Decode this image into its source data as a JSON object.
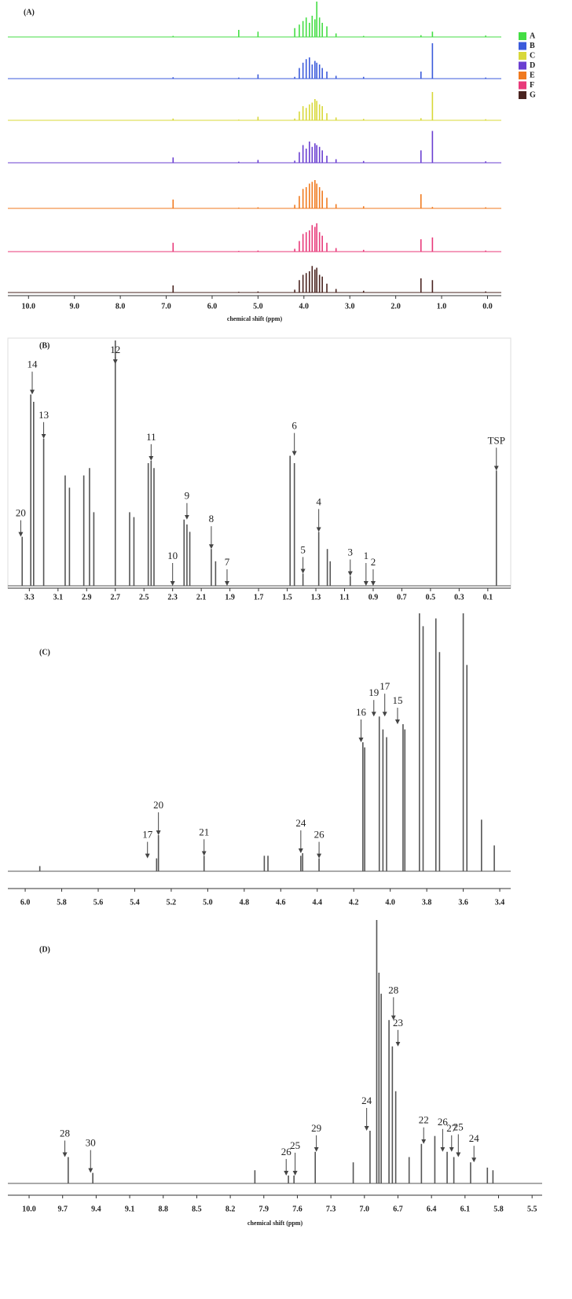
{
  "chart_data": [
    {
      "type": "spectrum",
      "title": "(A)",
      "xlabel": "chemical shift (ppm)",
      "xlim": [
        10.45,
        -0.3
      ],
      "xticks": [
        {
          "value": 10,
          "label": "10.0"
        },
        {
          "value": 9,
          "label": "9.0"
        },
        {
          "value": 8,
          "label": "8.0"
        },
        {
          "value": 7,
          "label": "7.0"
        },
        {
          "value": 6,
          "label": "6.0"
        },
        {
          "value": 5,
          "label": "5.0"
        },
        {
          "value": 4,
          "label": "4.0"
        },
        {
          "value": 3,
          "label": "3.0"
        },
        {
          "value": 2,
          "label": "2.0"
        },
        {
          "value": 1,
          "label": "1.0"
        },
        {
          "value": 0,
          "label": "0.0"
        }
      ],
      "x": [
        6.85,
        5.42,
        5.0,
        4.2,
        4.1,
        4.02,
        3.95,
        3.88,
        3.82,
        3.76,
        3.72,
        3.66,
        3.6,
        3.5,
        3.3,
        2.7,
        1.45,
        1.2,
        0.04
      ],
      "series": [
        {
          "name": "A",
          "color": "#44dd44",
          "values": [
            3,
            20,
            15,
            25,
            35,
            45,
            55,
            40,
            60,
            50,
            100,
            55,
            40,
            30,
            10,
            3,
            5,
            15,
            4
          ]
        },
        {
          "name": "B",
          "color": "#3b5bdb",
          "values": [
            4,
            3,
            12,
            5,
            30,
            45,
            55,
            60,
            40,
            50,
            45,
            40,
            30,
            20,
            8,
            5,
            20,
            100,
            3
          ]
        },
        {
          "name": "C",
          "color": "#d8d83a",
          "values": [
            5,
            2,
            10,
            5,
            25,
            40,
            35,
            45,
            50,
            60,
            55,
            45,
            40,
            20,
            8,
            4,
            6,
            80,
            3
          ]
        },
        {
          "name": "D",
          "color": "#6a3fd1",
          "values": [
            15,
            3,
            8,
            6,
            30,
            50,
            40,
            60,
            45,
            55,
            50,
            45,
            35,
            20,
            10,
            5,
            35,
            90,
            4
          ]
        },
        {
          "name": "E",
          "color": "#f07a1f",
          "values": [
            25,
            2,
            3,
            10,
            35,
            55,
            60,
            70,
            75,
            80,
            70,
            60,
            50,
            30,
            12,
            6,
            40,
            4,
            3
          ]
        },
        {
          "name": "F",
          "color": "#e83a7a",
          "values": [
            25,
            2,
            3,
            8,
            30,
            50,
            55,
            60,
            75,
            70,
            80,
            55,
            45,
            25,
            10,
            5,
            35,
            40,
            3
          ]
        },
        {
          "name": "G",
          "color": "#4a2420",
          "values": [
            20,
            2,
            3,
            8,
            35,
            50,
            55,
            60,
            75,
            65,
            70,
            50,
            45,
            25,
            10,
            5,
            40,
            35,
            3
          ]
        }
      ]
    },
    {
      "type": "spectrum",
      "title": "(B)",
      "xlim": [
        3.45,
        -0.06
      ],
      "xticks": [
        3.3,
        3.1,
        2.9,
        2.7,
        2.5,
        2.3,
        2.1,
        1.9,
        1.7,
        1.5,
        1.3,
        1.1,
        0.9,
        0.7,
        0.5,
        0.3,
        0.1
      ],
      "x": [
        3.35,
        3.29,
        3.27,
        3.2,
        3.05,
        3.02,
        2.92,
        2.88,
        2.85,
        2.7,
        2.6,
        2.57,
        2.47,
        2.45,
        2.43,
        2.22,
        2.2,
        2.18,
        2.03,
        2.0,
        1.48,
        1.45,
        1.39,
        1.28,
        1.22,
        1.2,
        1.06,
        0.04
      ],
      "series": [
        {
          "color": "#555555",
          "values": [
            20,
            78,
            75,
            60,
            45,
            40,
            45,
            48,
            30,
            100,
            30,
            28,
            50,
            51,
            48,
            27,
            25,
            22,
            15,
            10,
            53,
            50,
            5,
            22,
            15,
            10,
            4,
            47
          ]
        }
      ],
      "annotations": [
        {
          "text": "20",
          "x": 3.36
        },
        {
          "text": "14",
          "x": 3.28
        },
        {
          "text": "13",
          "x": 3.2
        },
        {
          "text": "12",
          "x": 2.7
        },
        {
          "text": "11",
          "x": 2.45
        },
        {
          "text": "10",
          "x": 2.3
        },
        {
          "text": "9",
          "x": 2.2
        },
        {
          "text": "8",
          "x": 2.03
        },
        {
          "text": "7",
          "x": 1.92
        },
        {
          "text": "6",
          "x": 1.45
        },
        {
          "text": "5",
          "x": 1.39
        },
        {
          "text": "4",
          "x": 1.28
        },
        {
          "text": "3",
          "x": 1.06
        },
        {
          "text": "1",
          "x": 0.95
        },
        {
          "text": "2",
          "x": 0.9
        },
        {
          "text": "TSP",
          "x": 0.04
        }
      ]
    },
    {
      "type": "spectrum",
      "title": "(C)",
      "xlim": [
        6.095,
        3.34
      ],
      "xticks": [
        {
          "value": 6,
          "label": "6.0"
        },
        5.8,
        5.6,
        5.4,
        5.2,
        {
          "value": 5,
          "label": "5.0"
        },
        4.8,
        4.6,
        4.4,
        4.2,
        {
          "value": 4,
          "label": "4.0"
        },
        3.8,
        3.6,
        3.4
      ],
      "x": [
        5.92,
        5.28,
        5.27,
        5.02,
        4.69,
        4.67,
        4.49,
        4.48,
        4.39,
        4.15,
        4.14,
        4.06,
        4.04,
        4.02,
        3.93,
        3.92,
        3.84,
        3.82,
        3.75,
        3.73,
        3.6,
        3.58,
        3.5,
        3.43
      ],
      "series": [
        {
          "color": "#555555",
          "values": [
            2,
            5,
            14,
            6,
            6,
            6,
            6,
            7,
            5,
            50,
            48,
            60,
            55,
            52,
            57,
            55,
            100,
            95,
            98,
            85,
            100,
            80,
            20,
            10
          ]
        }
      ],
      "annotations": [
        {
          "text": "17",
          "x": 5.33
        },
        {
          "text": "20",
          "x": 5.27
        },
        {
          "text": "21",
          "x": 5.02
        },
        {
          "text": "24",
          "x": 4.49
        },
        {
          "text": "26",
          "x": 4.39
        },
        {
          "text": "16",
          "x": 4.16
        },
        {
          "text": "19",
          "x": 4.09
        },
        {
          "text": "17",
          "x": 4.03
        },
        {
          "text": "15",
          "x": 3.96
        }
      ]
    },
    {
      "type": "spectrum",
      "title": "(D)",
      "xlabel": "chemical shift (ppm)",
      "xlim": [
        10.19,
        5.41
      ],
      "xticks": [
        {
          "value": 10,
          "label": "10.0"
        },
        9.7,
        9.4,
        9.1,
        8.8,
        8.5,
        8.2,
        7.9,
        7.6,
        7.3,
        {
          "value": 7,
          "label": "7.0"
        },
        6.7,
        6.4,
        6.1,
        5.8,
        5.5
      ],
      "x": [
        9.65,
        9.43,
        7.98,
        7.68,
        7.63,
        7.44,
        7.1,
        6.95,
        6.89,
        6.87,
        6.85,
        6.78,
        6.75,
        6.72,
        6.6,
        6.49,
        6.37,
        6.26,
        6.2,
        6.05,
        5.9,
        5.85
      ],
      "series": [
        {
          "color": "#555555",
          "values": [
            10,
            4,
            5,
            3,
            3,
            12,
            8,
            20,
            100,
            80,
            72,
            62,
            52,
            35,
            10,
            15,
            18,
            12,
            10,
            8,
            6,
            5
          ]
        }
      ],
      "annotations": [
        {
          "text": "28",
          "x": 9.68
        },
        {
          "text": "30",
          "x": 9.45
        },
        {
          "text": "26",
          "x": 7.7
        },
        {
          "text": "25",
          "x": 7.62
        },
        {
          "text": "29",
          "x": 7.43
        },
        {
          "text": "24",
          "x": 6.98
        },
        {
          "text": "23",
          "x": 6.7
        },
        {
          "text": "28",
          "x": 6.74
        },
        {
          "text": "22",
          "x": 6.47
        },
        {
          "text": "26",
          "x": 6.3
        },
        {
          "text": "27",
          "x": 6.22
        },
        {
          "text": "25",
          "x": 6.16
        },
        {
          "text": "24",
          "x": 6.02
        }
      ]
    }
  ]
}
